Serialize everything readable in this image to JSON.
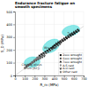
{
  "chart_data": {
    "type": "scatter",
    "title": "Endurance fracture fatigue on\nsmooth specimens",
    "xlabel": "R_m (MPa)",
    "ylabel": "S_D (MPa)",
    "xlim": [
      0,
      700
    ],
    "ylim": [
      0,
      500
    ],
    "xticks": [
      0,
      100,
      200,
      300,
      400,
      500,
      600,
      700
    ],
    "yticks": [
      0,
      100,
      200,
      300,
      400,
      500
    ],
    "grid": true,
    "legend": "lower right",
    "series": [
      {
        "name": "2xxx wrought",
        "color": "#111111",
        "marker": "square",
        "x": [
          230,
          250,
          270,
          290,
          310,
          330,
          350,
          370,
          390,
          410,
          430,
          450,
          470,
          490,
          510,
          530,
          550,
          570,
          590,
          610,
          630,
          650
        ],
        "values": [
          140,
          155,
          165,
          175,
          185,
          195,
          205,
          215,
          225,
          235,
          245,
          255,
          260,
          270,
          280,
          290,
          300,
          310,
          320,
          330,
          340,
          350
        ]
      },
      {
        "name": "6xxx wrought",
        "color": "#555555",
        "marker": "circle",
        "x": [
          200,
          220,
          240,
          260,
          280,
          300,
          320,
          340,
          360,
          380,
          400,
          420,
          440,
          460
        ],
        "values": [
          120,
          130,
          140,
          148,
          158,
          168,
          175,
          185,
          195,
          205,
          215,
          225,
          235,
          245
        ]
      },
      {
        "name": "7xxx wrought",
        "color": "#222222",
        "marker": "triangle-up",
        "x": [
          380,
          400,
          420,
          440,
          460,
          480,
          500,
          520,
          540,
          560,
          580,
          600,
          620,
          640
        ],
        "values": [
          220,
          235,
          248,
          258,
          268,
          278,
          288,
          298,
          308,
          318,
          328,
          338,
          348,
          358
        ]
      },
      {
        "name": "A-S cast",
        "color": "#888888",
        "marker": "diamond",
        "x": [
          100,
          110,
          120,
          130,
          140,
          150,
          160,
          170,
          180,
          190,
          200,
          210,
          220,
          230,
          240
        ],
        "values": [
          60,
          65,
          70,
          75,
          80,
          86,
          92,
          98,
          104,
          110,
          116,
          122,
          128,
          134,
          140
        ]
      },
      {
        "name": "A-U cast",
        "color": "#444444",
        "marker": "triangle-down",
        "x": [
          120,
          140,
          160,
          180,
          200,
          220,
          240,
          260,
          280,
          300
        ],
        "values": [
          72,
          82,
          92,
          102,
          112,
          120,
          128,
          136,
          144,
          152
        ]
      },
      {
        "name": "Other cast",
        "color": "#777777",
        "marker": "pentagon",
        "x": [
          130,
          150,
          170,
          190,
          210,
          230,
          250
        ],
        "values": [
          78,
          88,
          98,
          108,
          118,
          128,
          138
        ]
      }
    ],
    "regions": [
      {
        "cx": 570,
        "cy": 350,
        "width": 180,
        "height": 80,
        "angle": 10,
        "color": "#00cccc"
      },
      {
        "cx": 370,
        "cy": 230,
        "width": 180,
        "height": 95,
        "angle": 20,
        "color": "#00cccc"
      },
      {
        "cx": 175,
        "cy": 105,
        "width": 160,
        "height": 80,
        "angle": 5,
        "color": "#00cccc"
      }
    ],
    "reference_line": {
      "x": [
        0,
        700
      ],
      "y": [
        0,
        385
      ],
      "color": "#aaaaaa"
    },
    "annotations": [
      {
        "text": "Casting alloys\n(from [82])",
        "x": 170,
        "y": 68
      },
      {
        "text": "Wrought",
        "x": 360,
        "y": 215
      },
      {
        "text": "7xxx",
        "x": 570,
        "y": 325
      }
    ]
  }
}
